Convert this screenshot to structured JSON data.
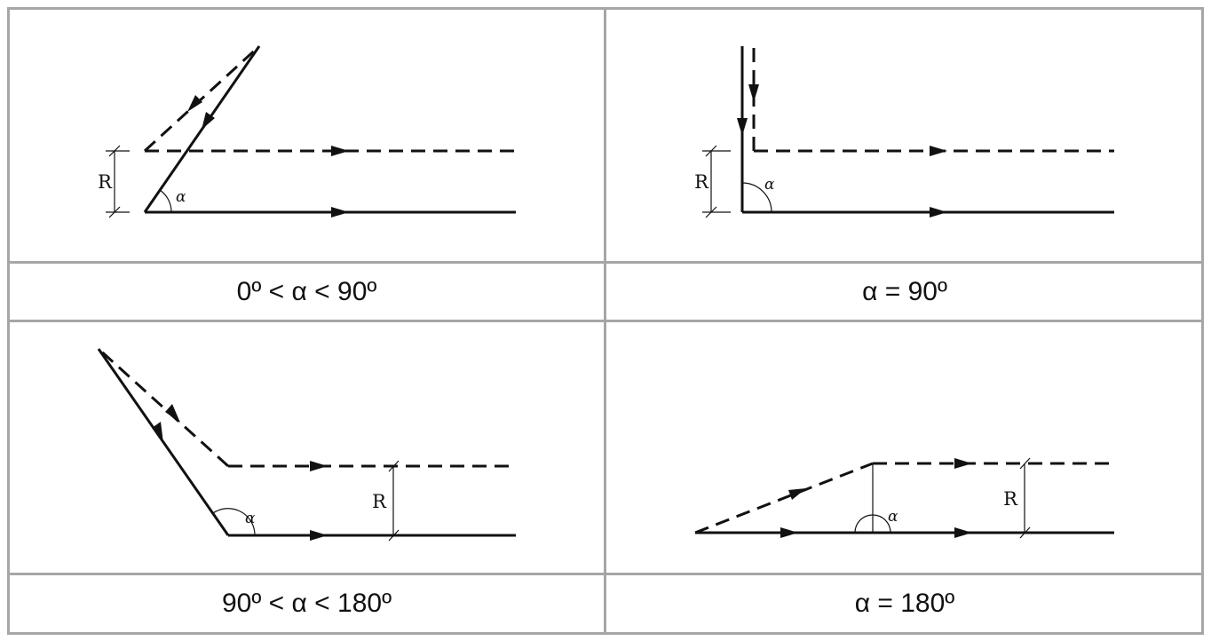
{
  "cases": [
    {
      "caption": "0º < α < 90º",
      "radius_label": "R",
      "angle_label": "α"
    },
    {
      "caption": "α = 90º",
      "radius_label": "R",
      "angle_label": "α"
    },
    {
      "caption": "90º < α < 180º",
      "radius_label": "R",
      "angle_label": "α"
    },
    {
      "caption": "α = 180º",
      "radius_label": "R",
      "angle_label": "α"
    }
  ]
}
